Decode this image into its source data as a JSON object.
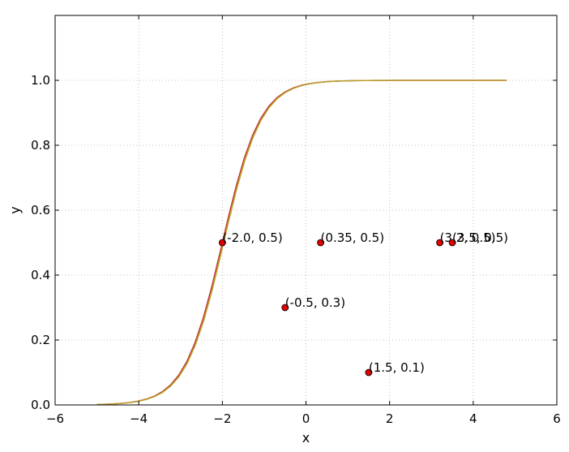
{
  "chart_data": {
    "type": "line",
    "xlabel": "x",
    "ylabel": "y",
    "xlim": [
      -6,
      6
    ],
    "ylim": [
      0,
      1.2
    ],
    "xticks": [
      -6,
      -4,
      -2,
      0,
      2,
      4,
      6
    ],
    "yticks": [
      0.0,
      0.2,
      0.4,
      0.6,
      0.8,
      1.0
    ],
    "xtick_labels": [
      "−6",
      "−4",
      "−2",
      "0",
      "2",
      "4",
      "6"
    ],
    "ytick_labels": [
      "0.0",
      "0.2",
      "0.4",
      "0.6",
      "0.8",
      "1.0"
    ],
    "grid": true,
    "curves": [
      {
        "kind": "sigmoid",
        "center": -2.0,
        "slope": 2.2,
        "x_range": [
          -5,
          4.8
        ],
        "color": "#c0392b"
      },
      {
        "kind": "sigmoid",
        "center": -1.97,
        "slope": 2.2,
        "x_range": [
          -5,
          4.8
        ],
        "color": "#b8a02c"
      }
    ],
    "points": [
      {
        "x": -2.0,
        "y": 0.5,
        "label": "(-2.0, 0.5)"
      },
      {
        "x": 0.35,
        "y": 0.5,
        "label": "(0.35, 0.5)"
      },
      {
        "x": -0.5,
        "y": 0.3,
        "label": "(-0.5, 0.3)"
      },
      {
        "x": 1.5,
        "y": 0.1,
        "label": "(1.5, 0.1)"
      },
      {
        "x": 3.2,
        "y": 0.5,
        "label": "(3.2, 0.5)"
      },
      {
        "x": 3.5,
        "y": 0.5,
        "label": "(3.5, 0.5)"
      }
    ],
    "point_color": "#e00000"
  }
}
